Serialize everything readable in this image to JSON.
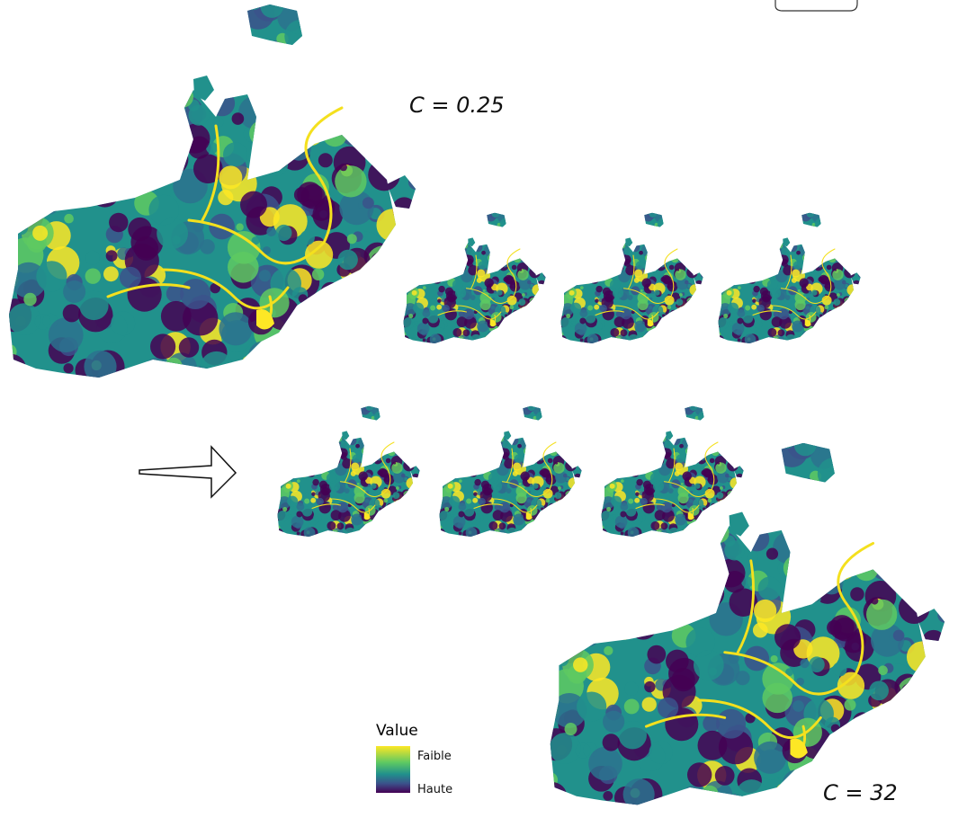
{
  "labels": {
    "top_left": "C = 0.25",
    "bottom_right": "C = 32"
  },
  "legend": {
    "title": "Value",
    "low": "Faible",
    "high": "Haute"
  }
}
